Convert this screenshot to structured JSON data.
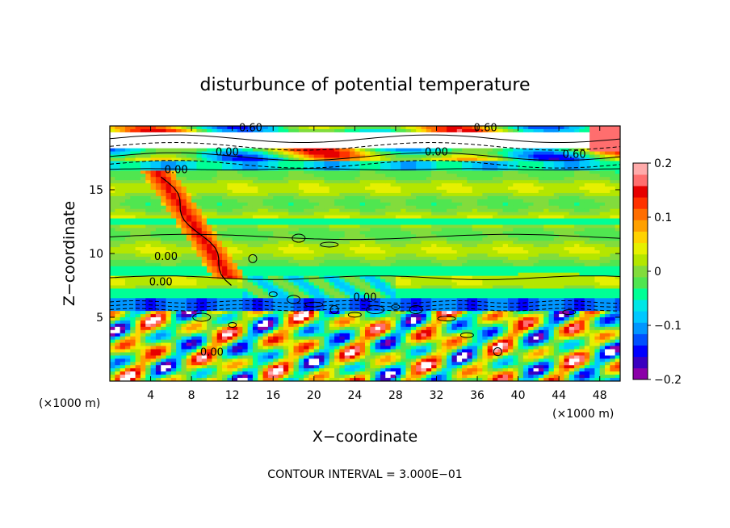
{
  "chart_data": {
    "type": "heatmap",
    "title": "disturbunce of potential temperature",
    "xlabel": "X−coordinate",
    "ylabel": "Z−coordinate",
    "x_unit_left": "(×1000 m)",
    "x_unit_right": "(×1000 m)",
    "xlim": [
      0,
      50
    ],
    "ylim": [
      0,
      20
    ],
    "x_ticks": [
      "4",
      "8",
      "12",
      "16",
      "20",
      "24",
      "28",
      "32",
      "36",
      "40",
      "44",
      "48"
    ],
    "y_ticks": [
      "5",
      "10",
      "15"
    ],
    "footer": "CONTOUR INTERVAL = 3.000E−01",
    "colorbar": {
      "min": -0.2,
      "max": 0.2,
      "tick_labels": [
        "0.2",
        "0.1",
        "0",
        "−0.1",
        "−0.2"
      ],
      "colors": [
        "#8b00a8",
        "#3a00c0",
        "#0000ff",
        "#0050ff",
        "#0096ff",
        "#00c8ff",
        "#00e6e6",
        "#00ff96",
        "#50e650",
        "#82dc3c",
        "#b4e600",
        "#e6f000",
        "#ffd200",
        "#ffa000",
        "#ff6e00",
        "#ff3200",
        "#e60000",
        "#ff6e6e",
        "#ffaaaa"
      ]
    },
    "contour_labels": [
      {
        "text": "0.60",
        "x": 13.8,
        "y": 19.6
      },
      {
        "text": "0.60",
        "x": 36.8,
        "y": 19.6
      },
      {
        "text": "0.00",
        "x": 11.5,
        "y": 17.7
      },
      {
        "text": "0.00",
        "x": 32.0,
        "y": 17.7
      },
      {
        "text": "0.60",
        "x": 45.5,
        "y": 17.5
      },
      {
        "text": "0.00",
        "x": 6.5,
        "y": 16.3
      },
      {
        "text": "0.00",
        "x": 5.5,
        "y": 9.5
      },
      {
        "text": "0.00",
        "x": 5.0,
        "y": 7.5
      },
      {
        "text": "0.00",
        "x": 25.0,
        "y": 6.3
      },
      {
        "text": "0.00",
        "x": 10.0,
        "y": 2.0
      }
    ]
  }
}
